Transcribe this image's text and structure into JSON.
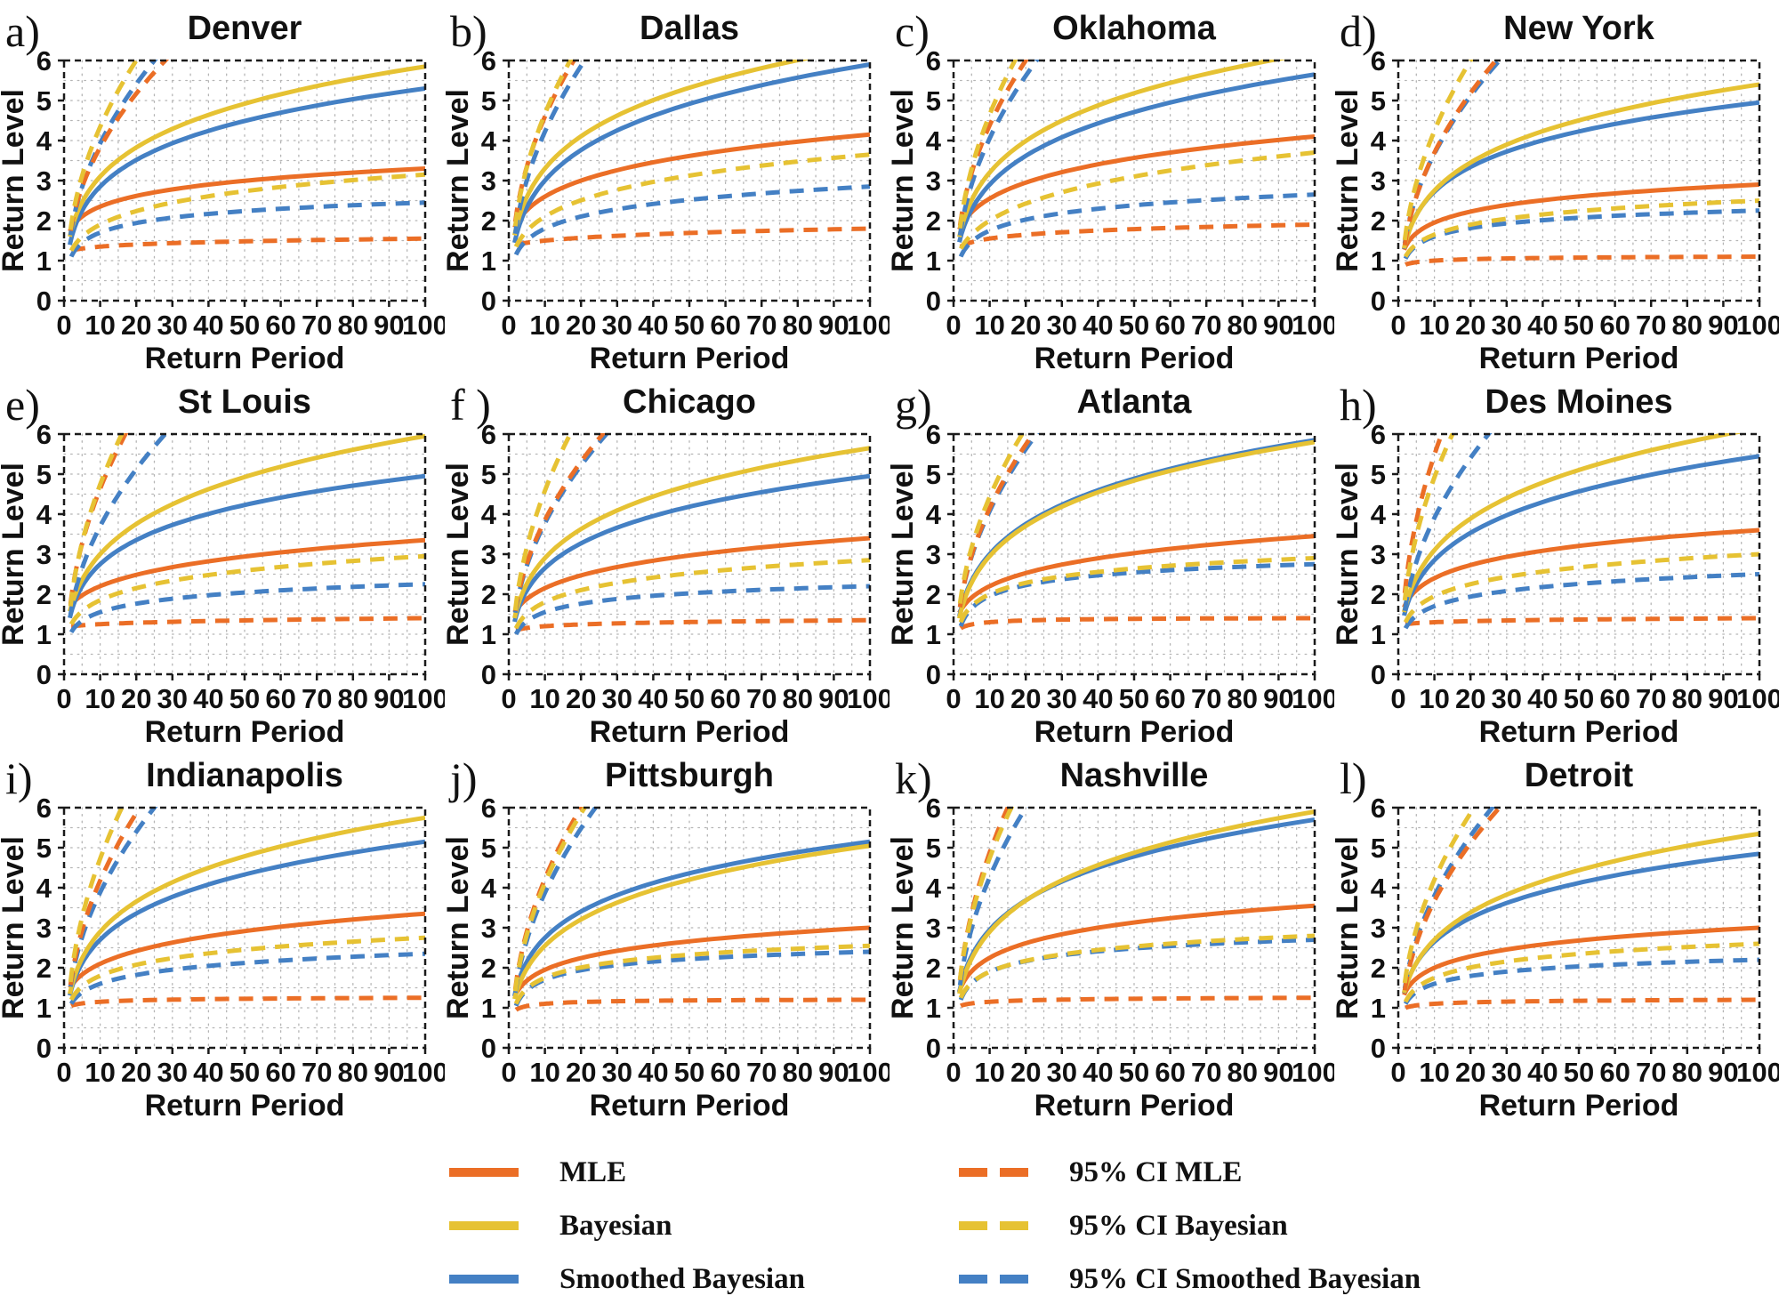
{
  "figure": {
    "type_note": "3x4 grid of return level curves for 12 US cities",
    "xlabel": "Return Period",
    "ylabel": "Return Level"
  },
  "colors": {
    "mle": "#EB6E26",
    "bayesian": "#E6C233",
    "smoothed_bayesian": "#4480C4",
    "frame": "#1a1a1a",
    "grid": "#b5b5b5",
    "text": "#111111"
  },
  "legend": {
    "items": [
      {
        "key": "mle",
        "label": "MLE",
        "style": "solid"
      },
      {
        "key": "bayesian",
        "label": "Bayesian",
        "style": "solid"
      },
      {
        "key": "smoothed_bayesian",
        "label": "Smoothed Bayesian",
        "style": "solid"
      },
      {
        "key": "mle",
        "label": "95% CI MLE",
        "style": "dashed"
      },
      {
        "key": "bayesian",
        "label": "95% CI Bayesian",
        "style": "dashed"
      },
      {
        "key": "smoothed_bayesian",
        "label": "95% CI Smoothed Bayesian",
        "style": "dashed"
      }
    ]
  },
  "chart_data": {
    "type": "line",
    "xlabel": "Return Period",
    "ylabel": "Return Level",
    "xlim": [
      0,
      100
    ],
    "ylim": [
      0,
      6
    ],
    "xticks": [
      0,
      10,
      20,
      30,
      40,
      50,
      60,
      70,
      80,
      90,
      100
    ],
    "yticks": [
      0,
      1,
      2,
      3,
      4,
      5,
      6
    ],
    "grid": {
      "x_minor_step": 5,
      "y_minor_step": 0.5,
      "style": "dotted"
    },
    "series_keys": [
      "mle",
      "bayesian",
      "smoothed_bayesian"
    ],
    "value_convention": "solid and ci_lower give y at x = 2, 10, 100; ci_upper gives y at x=2 and the x where the curve reaches the top of the axis (y=6)",
    "panels": [
      {
        "label": "a)",
        "title": "Denver",
        "solid": {
          "mle": [
            1.8,
            2.35,
            3.3
          ],
          "bayesian": [
            1.75,
            3.1,
            5.85
          ],
          "smoothed_bayesian": [
            1.55,
            2.85,
            5.3
          ]
        },
        "ci_lower": {
          "mle": [
            1.25,
            1.35,
            1.55
          ],
          "bayesian": [
            1.25,
            1.9,
            3.15
          ],
          "smoothed_bayesian": [
            1.1,
            1.7,
            2.45
          ]
        },
        "ci_upper": {
          "mle": {
            "y_at_2": 1.85,
            "top_x": 28
          },
          "bayesian": {
            "y_at_2": 1.9,
            "top_x": 20
          },
          "smoothed_bayesian": {
            "y_at_2": 1.75,
            "top_x": 25
          }
        }
      },
      {
        "label": "b)",
        "title": "Dallas",
        "solid": {
          "mle": [
            1.9,
            2.6,
            4.15
          ],
          "bayesian": [
            1.8,
            3.3,
            6.35
          ],
          "smoothed_bayesian": [
            1.6,
            3.0,
            5.9
          ]
        },
        "ci_lower": {
          "mle": [
            1.4,
            1.5,
            1.8
          ],
          "bayesian": [
            1.35,
            2.1,
            3.65
          ],
          "smoothed_bayesian": [
            1.15,
            1.8,
            2.85
          ]
        },
        "ci_upper": {
          "mle": {
            "y_at_2": 2.1,
            "top_x": 18
          },
          "bayesian": {
            "y_at_2": 2.0,
            "top_x": 17
          },
          "smoothed_bayesian": {
            "y_at_2": 1.8,
            "top_x": 21
          }
        }
      },
      {
        "label": "c)",
        "title": "Oklahoma",
        "solid": {
          "mle": [
            1.85,
            2.55,
            4.1
          ],
          "bayesian": [
            1.75,
            3.2,
            6.2
          ],
          "smoothed_bayesian": [
            1.6,
            2.9,
            5.65
          ]
        },
        "ci_lower": {
          "mle": [
            1.35,
            1.55,
            1.9
          ],
          "bayesian": [
            1.3,
            2.0,
            3.7
          ],
          "smoothed_bayesian": [
            1.1,
            1.75,
            2.65
          ]
        },
        "ci_upper": {
          "mle": {
            "y_at_2": 2.0,
            "top_x": 20
          },
          "bayesian": {
            "y_at_2": 1.95,
            "top_x": 17
          },
          "smoothed_bayesian": {
            "y_at_2": 1.75,
            "top_x": 23
          }
        }
      },
      {
        "label": "d)",
        "title": "New York",
        "solid": {
          "mle": [
            1.35,
            1.95,
            2.9
          ],
          "bayesian": [
            1.45,
            2.75,
            5.4
          ],
          "smoothed_bayesian": [
            1.45,
            2.72,
            4.95
          ]
        },
        "ci_lower": {
          "mle": [
            0.9,
            1.0,
            1.1
          ],
          "bayesian": [
            1.1,
            1.65,
            2.5
          ],
          "smoothed_bayesian": [
            1.05,
            1.6,
            2.25
          ]
        },
        "ci_upper": {
          "mle": {
            "y_at_2": 1.5,
            "top_x": 27
          },
          "bayesian": {
            "y_at_2": 1.65,
            "top_x": 20
          },
          "smoothed_bayesian": {
            "y_at_2": 1.55,
            "top_x": 28
          }
        }
      },
      {
        "label": "e)",
        "title": "St Louis",
        "solid": {
          "mle": [
            1.75,
            2.2,
            3.35
          ],
          "bayesian": [
            1.7,
            3.0,
            5.95
          ],
          "smoothed_bayesian": [
            1.55,
            2.75,
            4.95
          ]
        },
        "ci_lower": {
          "mle": [
            1.2,
            1.25,
            1.4
          ],
          "bayesian": [
            1.25,
            1.85,
            2.95
          ],
          "smoothed_bayesian": [
            1.05,
            1.55,
            2.25
          ]
        },
        "ci_upper": {
          "mle": {
            "y_at_2": 1.9,
            "top_x": 17
          },
          "bayesian": {
            "y_at_2": 1.85,
            "top_x": 16
          },
          "smoothed_bayesian": {
            "y_at_2": 1.6,
            "top_x": 28
          }
        }
      },
      {
        "label": "f )",
        "title": "Chicago",
        "solid": {
          "mle": [
            1.6,
            2.15,
            3.4
          ],
          "bayesian": [
            1.55,
            2.9,
            5.65
          ],
          "smoothed_bayesian": [
            1.45,
            2.65,
            4.95
          ]
        },
        "ci_lower": {
          "mle": [
            1.1,
            1.2,
            1.35
          ],
          "bayesian": [
            1.15,
            1.8,
            2.85
          ],
          "smoothed_bayesian": [
            1.0,
            1.55,
            2.2
          ]
        },
        "ci_upper": {
          "mle": {
            "y_at_2": 1.7,
            "top_x": 26
          },
          "bayesian": {
            "y_at_2": 1.75,
            "top_x": 17
          },
          "smoothed_bayesian": {
            "y_at_2": 1.65,
            "top_x": 27
          }
        }
      },
      {
        "label": "g)",
        "title": "Atlanta",
        "solid": {
          "mle": [
            1.6,
            2.2,
            3.45
          ],
          "bayesian": [
            1.55,
            2.95,
            5.8
          ],
          "smoothed_bayesian": [
            1.6,
            3.0,
            5.85
          ]
        },
        "ci_lower": {
          "mle": [
            1.15,
            1.3,
            1.4
          ],
          "bayesian": [
            1.3,
            2.0,
            2.9
          ],
          "smoothed_bayesian": [
            1.2,
            1.95,
            2.75
          ]
        },
        "ci_upper": {
          "mle": {
            "y_at_2": 1.8,
            "top_x": 22
          },
          "bayesian": {
            "y_at_2": 1.9,
            "top_x": 19
          },
          "smoothed_bayesian": {
            "y_at_2": 1.8,
            "top_x": 23
          }
        }
      },
      {
        "label": "h)",
        "title": "Des Moines",
        "solid": {
          "mle": [
            1.75,
            2.4,
            3.6
          ],
          "bayesian": [
            1.7,
            3.1,
            6.15
          ],
          "smoothed_bayesian": [
            1.6,
            2.85,
            5.45
          ]
        },
        "ci_lower": {
          "mle": [
            1.25,
            1.3,
            1.4
          ],
          "bayesian": [
            1.3,
            1.95,
            3.0
          ],
          "smoothed_bayesian": [
            1.15,
            1.7,
            2.5
          ]
        },
        "ci_upper": {
          "mle": {
            "y_at_2": 2.2,
            "top_x": 12
          },
          "bayesian": {
            "y_at_2": 2.0,
            "top_x": 15
          },
          "smoothed_bayesian": {
            "y_at_2": 1.7,
            "top_x": 25
          }
        }
      },
      {
        "label": "i)",
        "title": "Indianapolis",
        "solid": {
          "mle": [
            1.55,
            2.1,
            3.35
          ],
          "bayesian": [
            1.5,
            2.9,
            5.75
          ],
          "smoothed_bayesian": [
            1.45,
            2.7,
            5.15
          ]
        },
        "ci_lower": {
          "mle": [
            1.05,
            1.15,
            1.25
          ],
          "bayesian": [
            1.2,
            1.8,
            2.75
          ],
          "smoothed_bayesian": [
            1.1,
            1.6,
            2.35
          ]
        },
        "ci_upper": {
          "mle": {
            "y_at_2": 1.7,
            "top_x": 21
          },
          "bayesian": {
            "y_at_2": 1.8,
            "top_x": 16
          },
          "smoothed_bayesian": {
            "y_at_2": 1.65,
            "top_x": 25
          }
        }
      },
      {
        "label": "j)",
        "title": "Pittsburgh",
        "solid": {
          "mle": [
            1.35,
            1.95,
            3.0
          ],
          "bayesian": [
            1.35,
            2.55,
            5.05
          ],
          "smoothed_bayesian": [
            1.45,
            2.75,
            5.15
          ]
        },
        "ci_lower": {
          "mle": [
            0.95,
            1.1,
            1.2
          ],
          "bayesian": [
            1.1,
            1.75,
            2.55
          ],
          "smoothed_bayesian": [
            1.05,
            1.7,
            2.4
          ]
        },
        "ci_upper": {
          "mle": {
            "y_at_2": 1.6,
            "top_x": 20
          },
          "bayesian": {
            "y_at_2": 1.55,
            "top_x": 21
          },
          "smoothed_bayesian": {
            "y_at_2": 1.5,
            "top_x": 24
          }
        }
      },
      {
        "label": "k)",
        "title": "Nashville",
        "solid": {
          "mle": [
            1.5,
            2.25,
            3.55
          ],
          "bayesian": [
            1.5,
            2.9,
            5.9
          ],
          "smoothed_bayesian": [
            1.55,
            2.95,
            5.7
          ]
        },
        "ci_lower": {
          "mle": [
            1.05,
            1.15,
            1.25
          ],
          "bayesian": [
            1.25,
            1.9,
            2.8
          ],
          "smoothed_bayesian": [
            1.2,
            1.9,
            2.7
          ]
        },
        "ci_upper": {
          "mle": {
            "y_at_2": 1.85,
            "top_x": 15
          },
          "bayesian": {
            "y_at_2": 1.85,
            "top_x": 16
          },
          "smoothed_bayesian": {
            "y_at_2": 1.7,
            "top_x": 20
          }
        }
      },
      {
        "label": "l)",
        "title": "Detroit",
        "solid": {
          "mle": [
            1.4,
            2.0,
            3.0
          ],
          "bayesian": [
            1.5,
            2.7,
            5.35
          ],
          "smoothed_bayesian": [
            1.5,
            2.65,
            4.85
          ]
        },
        "ci_lower": {
          "mle": [
            1.0,
            1.1,
            1.2
          ],
          "bayesian": [
            1.15,
            1.75,
            2.6
          ],
          "smoothed_bayesian": [
            1.1,
            1.6,
            2.2
          ]
        },
        "ci_upper": {
          "mle": {
            "y_at_2": 1.55,
            "top_x": 28
          },
          "bayesian": {
            "y_at_2": 1.75,
            "top_x": 21
          },
          "smoothed_bayesian": {
            "y_at_2": 1.6,
            "top_x": 26
          }
        }
      }
    ]
  }
}
